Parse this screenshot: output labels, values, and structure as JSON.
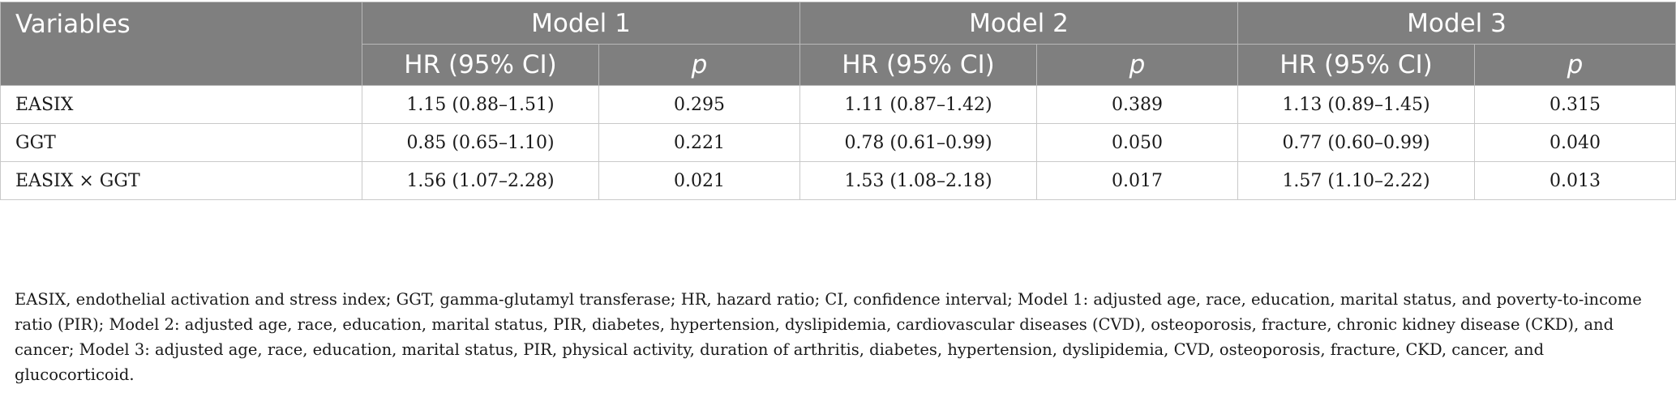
{
  "table": {
    "header": {
      "variables": "Variables",
      "models": [
        "Model 1",
        "Model 2",
        "Model 3"
      ],
      "sub": {
        "hr": "HR (95% CI)",
        "p": "p"
      }
    },
    "rows": [
      {
        "variable": "EASIX",
        "m1_hr": "1.15 (0.88–1.51)",
        "m1_p": "0.295",
        "m2_hr": "1.11 (0.87–1.42)",
        "m2_p": "0.389",
        "m3_hr": "1.13 (0.89–1.45)",
        "m3_p": "0.315"
      },
      {
        "variable": "GGT",
        "m1_hr": "0.85 (0.65–1.10)",
        "m1_p": "0.221",
        "m2_hr": "0.78 (0.61–0.99)",
        "m2_p": "0.050",
        "m3_hr": "0.77 (0.60–0.99)",
        "m3_p": "0.040"
      },
      {
        "variable": "EASIX × GGT",
        "m1_hr": "1.56 (1.07–2.28)",
        "m1_p": "0.021",
        "m2_hr": "1.53 (1.08–2.18)",
        "m2_p": "0.017",
        "m3_hr": "1.57 (1.10–2.22)",
        "m3_p": "0.013"
      }
    ]
  },
  "footnote": "EASIX, endothelial activation and stress index; GGT, gamma-glutamyl transferase; HR, hazard ratio; CI, confidence interval; Model 1: adjusted age, race, education, marital status, and poverty-to-income ratio (PIR); Model 2: adjusted age, race, education, marital status, PIR, diabetes, hypertension, dyslipidemia, cardiovascular diseases (CVD), osteoporosis, fracture, chronic kidney disease (CKD), and cancer; Model 3: adjusted age, race, education, marital status, PIR, physical activity, duration of arthritis, diabetes, hypertension, dyslipidemia, CVD, osteoporosis, fracture, CKD, cancer, and glucocorticoid."
}
